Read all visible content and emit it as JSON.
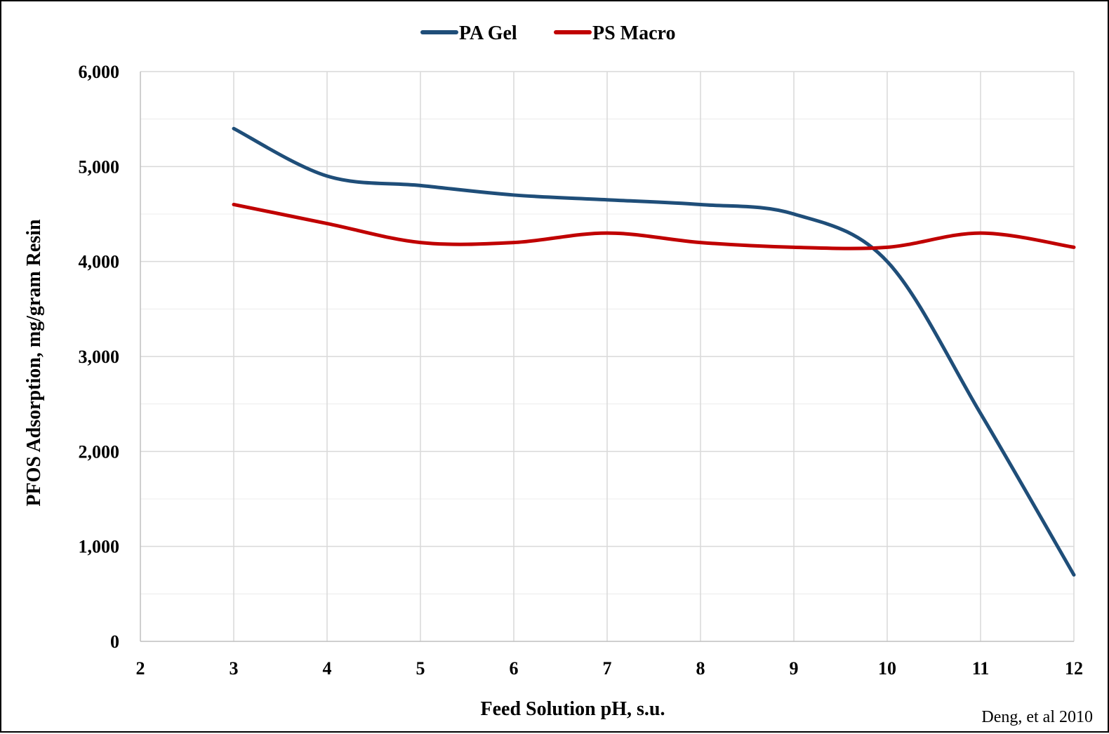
{
  "chart_data": {
    "type": "line",
    "title": "",
    "xlabel": "Feed Solution pH, s.u.",
    "ylabel": "PFOS Adsorption, mg/gram Resin",
    "xlim": [
      2,
      12
    ],
    "ylim": [
      0,
      6000
    ],
    "x_ticks": [
      "2",
      "3",
      "4",
      "5",
      "6",
      "7",
      "8",
      "9",
      "10",
      "11",
      "12"
    ],
    "y_ticks": [
      "0",
      "1,000",
      "2,000",
      "3,000",
      "4,000",
      "5,000",
      "6,000"
    ],
    "y_tick_values": [
      0,
      1000,
      2000,
      3000,
      4000,
      5000,
      6000
    ],
    "grid": true,
    "legend_position": "top-center",
    "series": [
      {
        "name": "PA Gel",
        "color": "#1F4E79",
        "x": [
          3,
          4,
          5,
          6,
          7,
          8,
          9,
          10,
          11,
          12
        ],
        "y": [
          5400,
          4900,
          4800,
          4700,
          4650,
          4600,
          4500,
          4000,
          2400,
          700
        ]
      },
      {
        "name": "PS Macro",
        "color": "#C00000",
        "x": [
          3,
          4,
          5,
          6,
          7,
          8,
          9,
          10,
          11,
          12
        ],
        "y": [
          4600,
          4400,
          4200,
          4200,
          4300,
          4200,
          4150,
          4150,
          4300,
          4150
        ]
      }
    ],
    "annotation": "Deng, et al 2010"
  }
}
